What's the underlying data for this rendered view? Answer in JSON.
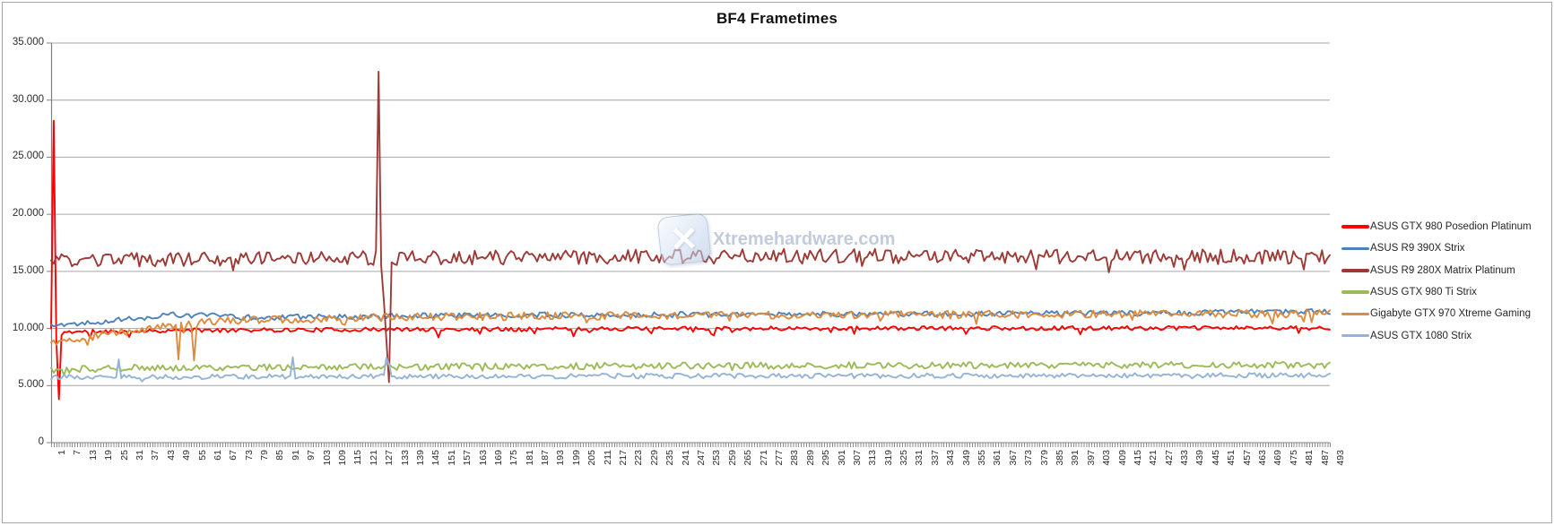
{
  "window": {
    "border_color": "#A6A6A6",
    "background": "#FFFFFF"
  },
  "chart_data": {
    "type": "line",
    "title": "BF4 Frametimes",
    "xlabel": "",
    "ylabel": "",
    "ylim": [
      0,
      35000
    ],
    "y_tick_step": 5000,
    "y_tick_labels": [
      "35.000",
      "30.000",
      "25.000",
      "20.000",
      "15.000",
      "10.000",
      "5.000",
      "0"
    ],
    "x_categories_range": {
      "start": 1,
      "end": 493,
      "step": 1
    },
    "x_tick_labels": [
      "1",
      "7",
      "13",
      "19",
      "25",
      "31",
      "37",
      "43",
      "49",
      "55",
      "61",
      "67",
      "73",
      "79",
      "85",
      "91",
      "97",
      "103",
      "109",
      "115",
      "121",
      "127",
      "133",
      "139",
      "145",
      "151",
      "157",
      "163",
      "169",
      "175",
      "181",
      "187",
      "193",
      "199",
      "205",
      "211",
      "217",
      "223",
      "229",
      "235",
      "241",
      "247",
      "253",
      "259",
      "265",
      "271",
      "277",
      "283",
      "289",
      "295",
      "301",
      "307",
      "313",
      "319",
      "325",
      "331",
      "337",
      "343",
      "349",
      "355",
      "361",
      "367",
      "373",
      "379",
      "385",
      "391",
      "397",
      "403",
      "409",
      "415",
      "421",
      "427",
      "433",
      "439",
      "445",
      "451",
      "457",
      "463",
      "469",
      "475",
      "481",
      "487",
      "493"
    ],
    "grid": "horizontal",
    "gridline_color": "#A6A6A6",
    "axis_color": "#808080",
    "tick_label_color": "#2B2B2B",
    "legend_position": "right",
    "series": [
      {
        "name": "ASUS GTX 980 Posedion Platinum",
        "color": "#FE0000",
        "seed": 11,
        "noise": 180,
        "baseline": [
          [
            1,
            10000
          ],
          [
            6,
            9700
          ],
          [
            60,
            9850
          ],
          [
            250,
            10000
          ],
          [
            493,
            10050
          ]
        ],
        "dip_chance": 0.06,
        "dip_depth": 620,
        "spikes": {
          "2": 28200,
          "3": 9000,
          "4": 3800,
          "5": 9400
        }
      },
      {
        "name": "ASUS R9 390X Strix",
        "color": "#4F81BD",
        "seed": 22,
        "noise": 240,
        "baseline": [
          [
            1,
            10300
          ],
          [
            12,
            10450
          ],
          [
            45,
            11150
          ],
          [
            60,
            11300
          ],
          [
            75,
            10950
          ],
          [
            150,
            11150
          ],
          [
            300,
            11250
          ],
          [
            420,
            11350
          ],
          [
            493,
            11500
          ]
        ],
        "dip_chance": 0.03,
        "dip_depth": 420,
        "spikes": {}
      },
      {
        "name": "ASUS R9 280X Matrix Platinum",
        "color": "#9C3A36",
        "seed": 33,
        "noise": 640,
        "baseline": [
          [
            1,
            15900
          ],
          [
            100,
            16150
          ],
          [
            300,
            16350
          ],
          [
            493,
            16250
          ]
        ],
        "dip_chance": 0.05,
        "dip_depth": 850,
        "spikes": {
          "126": 16800,
          "127": 32500,
          "128": 15500,
          "129": 12500,
          "130": 9000,
          "131": 5300,
          "132": 15800
        }
      },
      {
        "name": "ASUS GTX 980 Ti Strix",
        "color": "#9BBB59",
        "seed": 44,
        "noise": 290,
        "baseline": [
          [
            1,
            6350
          ],
          [
            30,
            6550
          ],
          [
            250,
            6750
          ],
          [
            493,
            6800
          ]
        ],
        "dip_chance": 0.03,
        "dip_depth": 350,
        "spikes": {}
      },
      {
        "name": "Gigabyte GTX 970 Xtreme Gaming",
        "color": "#DC8C3C",
        "seed": 55,
        "noise": 340,
        "baseline": [
          [
            1,
            8800
          ],
          [
            20,
            9400
          ],
          [
            45,
            10200
          ],
          [
            70,
            10700
          ],
          [
            150,
            11050
          ],
          [
            300,
            11200
          ],
          [
            493,
            11300
          ]
        ],
        "dip_chance": 0.04,
        "dip_depth": 650,
        "spikes": {
          "50": 7300,
          "56": 7200
        }
      },
      {
        "name": "ASUS GTX 1080 Strix",
        "color": "#95B3D7",
        "seed": 66,
        "noise": 210,
        "baseline": [
          [
            1,
            5750
          ],
          [
            250,
            5850
          ],
          [
            493,
            5900
          ]
        ],
        "dip_chance": 0.03,
        "dip_depth": 300,
        "spikes": {
          "27": 7300,
          "94": 7500,
          "130": 7450,
          "131": 6900
        }
      }
    ],
    "watermark": {
      "text": "Xtremehardware.com",
      "icon": "x-logo"
    }
  }
}
